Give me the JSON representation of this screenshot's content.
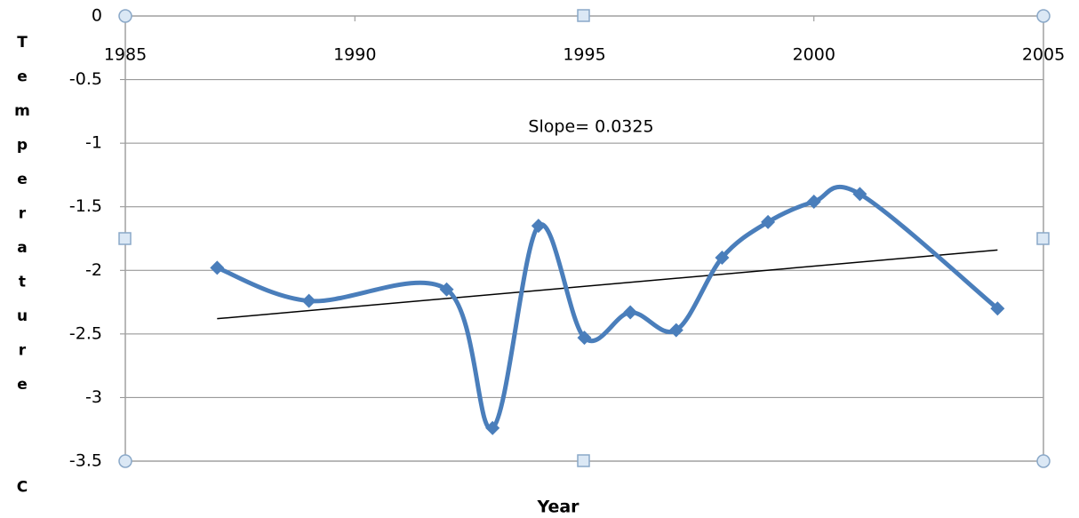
{
  "chart_data": {
    "type": "line",
    "xlabel": "Year",
    "ylabel": "Temperature  C",
    "annotation": "Slope= 0.0325",
    "x": [
      1987,
      1989,
      1992,
      1993,
      1994,
      1995,
      1996,
      1997,
      1998,
      1999,
      2000,
      2001,
      2004
    ],
    "series": [
      {
        "color": "#4a7ebb",
        "values": [
          -1.98,
          -2.24,
          -2.15,
          -3.24,
          -1.65,
          -2.53,
          -2.33,
          -2.47,
          -1.9,
          -1.62,
          -1.46,
          -1.4,
          -2.3
        ]
      }
    ],
    "trendline": {
      "x": [
        1987,
        2004
      ],
      "values": [
        -2.38,
        -1.84
      ],
      "color": "#000000"
    },
    "xlim": [
      1985,
      2005
    ],
    "xticks": [
      1985,
      1990,
      1995,
      2000,
      2005
    ],
    "ylim": [
      -3.5,
      0
    ],
    "yticks": [
      0,
      -0.5,
      -1,
      -1.5,
      -2,
      -2.5,
      -3,
      -3.5
    ],
    "grid": true
  }
}
